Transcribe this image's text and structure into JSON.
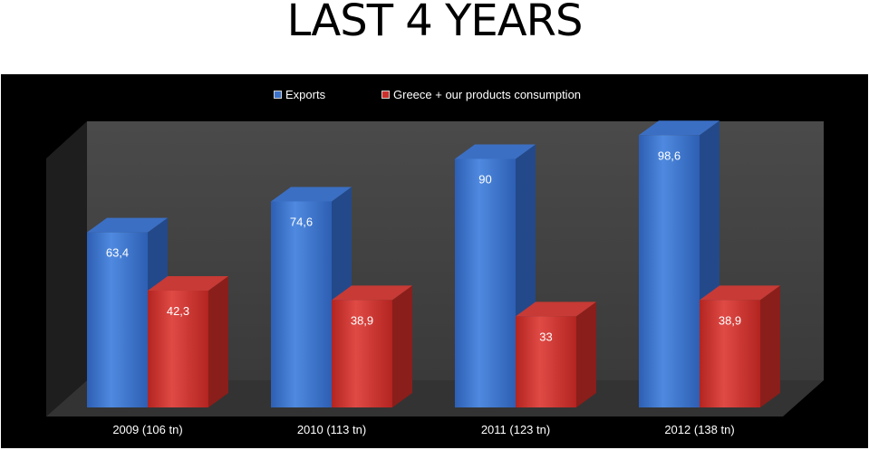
{
  "title": "LAST 4 YEARS",
  "colors": {
    "exports": "#3b72c9",
    "greece": "#c9302c",
    "panel": "#000000"
  },
  "legend": {
    "exports": "Exports",
    "greece": "Greece + our products consumption"
  },
  "chart_data": {
    "type": "bar",
    "title": "LAST 4 YEARS",
    "categories": [
      "2009 (106 tn)",
      "2010 (113 tn)",
      "2011 (123 tn)",
      "2012 (138 tn)"
    ],
    "series": [
      {
        "name": "Exports",
        "values": [
          63.4,
          74.6,
          90,
          98.6
        ],
        "labels": [
          "63,4",
          "74,6",
          "90",
          "98,6"
        ]
      },
      {
        "name": "Greece + our products consumption",
        "values": [
          42.3,
          38.9,
          33,
          38.9
        ],
        "labels": [
          "42,3",
          "38,9",
          "33",
          "38,9"
        ]
      }
    ],
    "ylim": [
      0,
      100
    ],
    "grid": false,
    "legend": "top-center",
    "style": "3d-column"
  }
}
